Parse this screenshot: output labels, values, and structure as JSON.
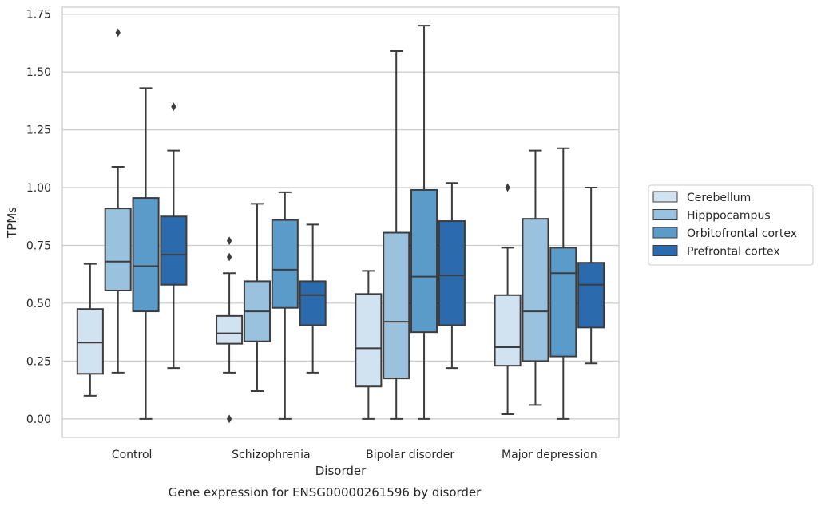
{
  "chart_data": {
    "type": "box",
    "title": "Gene expression for ENSG00000261596 by disorder",
    "xlabel": "Disorder",
    "ylabel": "TPMs",
    "ylim": [
      -0.08,
      1.78
    ],
    "yticks": [
      0.0,
      0.25,
      0.5,
      0.75,
      1.0,
      1.25,
      1.5,
      1.75
    ],
    "ytick_labels": [
      "0.00",
      "0.25",
      "0.50",
      "0.75",
      "1.00",
      "1.25",
      "1.50",
      "1.75"
    ],
    "grid": true,
    "legend_position": "right",
    "categories": [
      "Control",
      "Schizophrenia",
      "Bipolar disorder",
      "Major depression"
    ],
    "series": [
      {
        "name": "Cerebellum",
        "color": "#d1e2f1",
        "boxes": [
          {
            "whislo": 0.1,
            "q1": 0.195,
            "med": 0.33,
            "q3": 0.475,
            "whishi": 0.67,
            "fliers": []
          },
          {
            "whislo": 0.2,
            "q1": 0.325,
            "med": 0.37,
            "q3": 0.445,
            "whishi": 0.63,
            "fliers": [
              0.77,
              0.7,
              0.0
            ]
          },
          {
            "whislo": 0.0,
            "q1": 0.14,
            "med": 0.305,
            "q3": 0.54,
            "whishi": 0.64,
            "fliers": []
          },
          {
            "whislo": 0.02,
            "q1": 0.23,
            "med": 0.31,
            "q3": 0.535,
            "whishi": 0.74,
            "fliers": [
              1.0
            ]
          }
        ]
      },
      {
        "name": "Hipppocampus",
        "color": "#9ac1dd",
        "boxes": [
          {
            "whislo": 0.2,
            "q1": 0.555,
            "med": 0.68,
            "q3": 0.91,
            "whishi": 1.09,
            "fliers": [
              1.67
            ]
          },
          {
            "whislo": 0.12,
            "q1": 0.335,
            "med": 0.465,
            "q3": 0.595,
            "whishi": 0.93,
            "fliers": []
          },
          {
            "whislo": 0.0,
            "q1": 0.175,
            "med": 0.42,
            "q3": 0.805,
            "whishi": 1.59,
            "fliers": []
          },
          {
            "whislo": 0.06,
            "q1": 0.25,
            "med": 0.465,
            "q3": 0.865,
            "whishi": 1.16,
            "fliers": []
          }
        ]
      },
      {
        "name": "Orbitofrontal cortex",
        "color": "#5b9bc9",
        "boxes": [
          {
            "whislo": 0.0,
            "q1": 0.465,
            "med": 0.66,
            "q3": 0.955,
            "whishi": 1.43,
            "fliers": []
          },
          {
            "whislo": 0.0,
            "q1": 0.48,
            "med": 0.645,
            "q3": 0.86,
            "whishi": 0.98,
            "fliers": []
          },
          {
            "whislo": 0.0,
            "q1": 0.375,
            "med": 0.615,
            "q3": 0.99,
            "whishi": 1.7,
            "fliers": []
          },
          {
            "whislo": 0.0,
            "q1": 0.27,
            "med": 0.63,
            "q3": 0.74,
            "whishi": 1.17,
            "fliers": []
          }
        ]
      },
      {
        "name": "Prefrontal cortex",
        "color": "#2a6aad",
        "boxes": [
          {
            "whislo": 0.22,
            "q1": 0.58,
            "med": 0.71,
            "q3": 0.875,
            "whishi": 1.16,
            "fliers": [
              1.35
            ]
          },
          {
            "whislo": 0.2,
            "q1": 0.405,
            "med": 0.535,
            "q3": 0.595,
            "whishi": 0.84,
            "fliers": []
          },
          {
            "whislo": 0.22,
            "q1": 0.405,
            "med": 0.62,
            "q3": 0.855,
            "whishi": 1.02,
            "fliers": []
          },
          {
            "whislo": 0.24,
            "q1": 0.395,
            "med": 0.58,
            "q3": 0.675,
            "whishi": 1.0,
            "fliers": []
          }
        ]
      }
    ]
  }
}
